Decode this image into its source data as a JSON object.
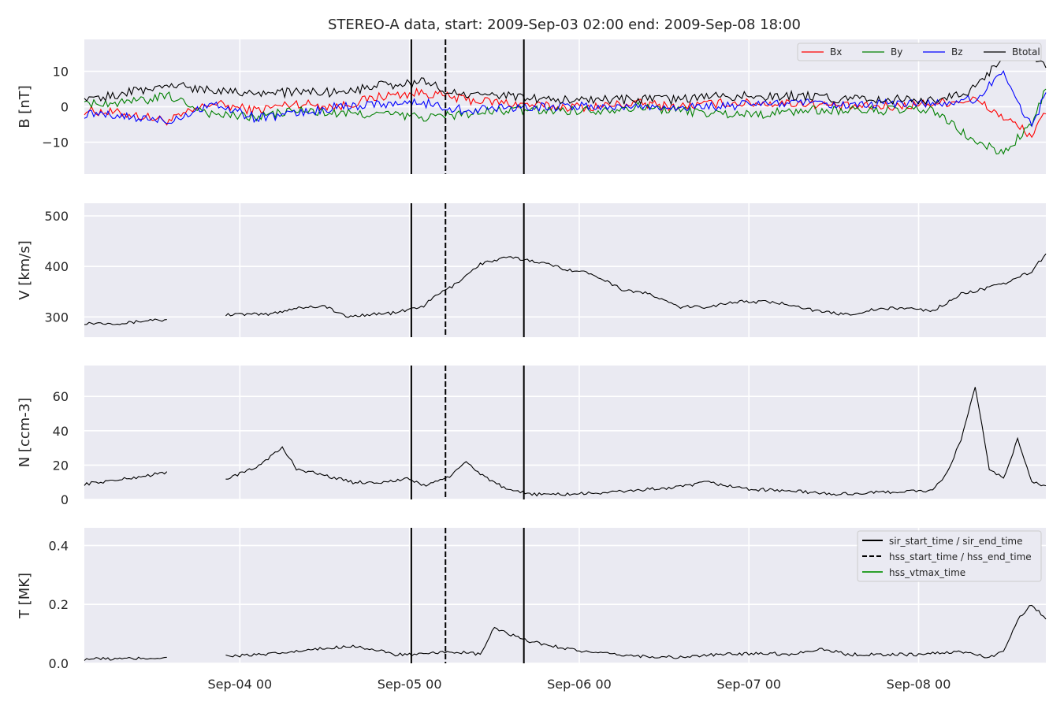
{
  "title": "STEREO-A data, start: 2009-Sep-03 02:00  end: 2009-Sep-08 18:00",
  "x_ticks": [
    "Sep-04 00",
    "Sep-05 00",
    "Sep-06 00",
    "Sep-07 00",
    "Sep-08 00"
  ],
  "colors": {
    "panel_bg": "#eaeaf2",
    "grid": "#ffffff",
    "Bx": "#ff0000",
    "By": "#008000",
    "Bz": "#0000ff",
    "Btotal": "#000000",
    "black": "#000000",
    "hss_vtmax": "#2ca02c"
  },
  "chart_data": {
    "type": "line",
    "x_axis": {
      "start": "2009-09-03 02:00",
      "end": "2009-09-08 18:00",
      "ticks": [
        "2009-09-04 00:00",
        "2009-09-05 00:00",
        "2009-09-06 00:00",
        "2009-09-07 00:00",
        "2009-09-08 00:00"
      ]
    },
    "event_lines": [
      {
        "label": "sir_start_time / sir_end_time",
        "style": "solid",
        "times": [
          "2009-09-05 00:15",
          "2009-09-05 16:10"
        ]
      },
      {
        "label": "hss_start_time / hss_end_time",
        "style": "dashed",
        "times": [
          "2009-09-05 05:05"
        ]
      },
      {
        "label": "hss_vtmax_time",
        "style": "solid-green",
        "times": []
      }
    ],
    "panels": [
      {
        "ylabel": "B [nT]",
        "ylim": [
          -19,
          19
        ],
        "yticks": [
          -10,
          0,
          10
        ],
        "ytick_labels": [
          "−10",
          "0",
          "10"
        ],
        "legend": {
          "position": "top-right",
          "entries": [
            "Bx",
            "By",
            "Bz",
            "Btotal"
          ]
        },
        "series": [
          {
            "name": "Bx",
            "x_hours": [
              0,
              6,
              12,
              18,
              24,
              30,
              36,
              42,
              48,
              54,
              60,
              66,
              72,
              78,
              84,
              90,
              96,
              102,
              108,
              114,
              120,
              126,
              130,
              134,
              136
            ],
            "values": [
              -1,
              -2,
              -4,
              1,
              -1,
              1,
              0,
              3,
              4,
              2,
              1,
              0,
              0,
              1,
              0,
              1,
              1,
              1,
              0,
              0,
              1,
              2,
              -3,
              -8,
              -2
            ]
          },
          {
            "name": "By",
            "x_hours": [
              0,
              6,
              12,
              18,
              24,
              30,
              36,
              42,
              48,
              54,
              60,
              66,
              72,
              78,
              84,
              90,
              96,
              102,
              108,
              114,
              120,
              126,
              130,
              134,
              136
            ],
            "values": [
              1,
              1,
              3,
              -2,
              -3,
              -1,
              -2,
              -2,
              -3,
              -2,
              -1,
              -1,
              -1,
              0,
              -1,
              -2,
              -2,
              -1,
              -1,
              -1,
              -1,
              -10,
              -13,
              -5,
              5
            ]
          },
          {
            "name": "Bz",
            "x_hours": [
              0,
              6,
              12,
              18,
              24,
              30,
              36,
              42,
              48,
              54,
              60,
              66,
              72,
              78,
              84,
              90,
              96,
              102,
              108,
              114,
              120,
              126,
              130,
              134,
              136
            ],
            "values": [
              -2,
              -3,
              -4,
              1,
              -3,
              -2,
              0,
              1,
              1,
              -1,
              0,
              0,
              0,
              0,
              0,
              0,
              1,
              1,
              0,
              1,
              1,
              2,
              10,
              -6,
              4
            ]
          },
          {
            "name": "Btotal",
            "x_hours": [
              0,
              6,
              12,
              18,
              24,
              30,
              36,
              42,
              48,
              54,
              60,
              66,
              72,
              78,
              84,
              90,
              96,
              102,
              108,
              114,
              120,
              126,
              130,
              134,
              136
            ],
            "values": [
              2,
              4,
              6,
              5,
              4,
              4,
              4,
              6,
              7,
              3,
              3,
              2,
              2,
              2,
              2,
              3,
              3,
              3,
              2,
              2,
              2,
              5,
              15,
              14,
              11
            ]
          }
        ]
      },
      {
        "ylabel": "V [km/s]",
        "ylim": [
          260,
          525
        ],
        "yticks": [
          300,
          400,
          500
        ],
        "ytick_labels": [
          "300",
          "400",
          "500"
        ],
        "series": [
          {
            "name": "V",
            "x_hours": [
              0,
              6,
              10,
              12,
              14,
              20,
              26,
              30,
              34,
              37,
              40,
              44,
              48,
              50,
              52,
              56,
              60,
              64,
              68,
              72,
              76,
              80,
              84,
              88,
              92,
              96,
              100,
              104,
              108,
              112,
              116,
              120,
              124,
              130,
              134,
              136
            ],
            "values": [
              288,
              288,
              295,
              292,
              null,
              305,
              305,
              318,
              322,
              300,
              305,
              308,
              322,
              345,
              360,
              405,
              418,
              410,
              395,
              385,
              355,
              345,
              320,
              320,
              330,
              330,
              325,
              310,
              305,
              315,
              318,
              312,
              345,
              365,
              390,
              425
            ]
          }
        ]
      },
      {
        "ylabel": "N [ccm-3]",
        "ylim": [
          0,
          78
        ],
        "yticks": [
          0,
          20,
          40,
          60
        ],
        "ytick_labels": [
          "0",
          "20",
          "40",
          "60"
        ],
        "series": [
          {
            "name": "N",
            "x_hours": [
              0,
              6,
              12,
              14,
              20,
              24,
              28,
              30,
              34,
              38,
              42,
              46,
              48,
              52,
              54,
              56,
              60,
              64,
              68,
              74,
              80,
              84,
              88,
              94,
              100,
              106,
              112,
              118,
              120,
              122,
              124,
              126,
              128,
              130,
              132,
              134,
              136
            ],
            "values": [
              9,
              12,
              16,
              null,
              12,
              18,
              30,
              18,
              14,
              10,
              10,
              12,
              8,
              14,
              22,
              15,
              5,
              3,
              3,
              4,
              6,
              7,
              10,
              6,
              5,
              3,
              4,
              5,
              5,
              15,
              35,
              65,
              18,
              12,
              35,
              10,
              8
            ]
          }
        ]
      },
      {
        "ylabel": "T [MK]",
        "ylim": [
          0,
          0.46
        ],
        "yticks": [
          0.0,
          0.2,
          0.4
        ],
        "ytick_labels": [
          "0.0",
          "0.2",
          "0.4"
        ],
        "legend": {
          "position": "top-right",
          "entries": [
            "sir_start_time / sir_end_time",
            "hss_start_time / hss_end_time",
            "hss_vtmax_time"
          ]
        },
        "series": [
          {
            "name": "T",
            "x_hours": [
              0,
              6,
              12,
              14,
              20,
              26,
              32,
              38,
              44,
              48,
              52,
              56,
              58,
              62,
              66,
              72,
              78,
              84,
              90,
              96,
              100,
              104,
              108,
              112,
              118,
              124,
              128,
              130,
              132,
              134,
              136
            ],
            "values": [
              0.015,
              0.015,
              0.02,
              null,
              0.025,
              0.03,
              0.045,
              0.06,
              0.03,
              0.03,
              0.04,
              0.03,
              0.12,
              0.08,
              0.06,
              0.035,
              0.025,
              0.02,
              0.03,
              0.035,
              0.03,
              0.05,
              0.03,
              0.03,
              0.03,
              0.04,
              0.02,
              0.04,
              0.15,
              0.2,
              0.15
            ]
          }
        ]
      }
    ]
  }
}
